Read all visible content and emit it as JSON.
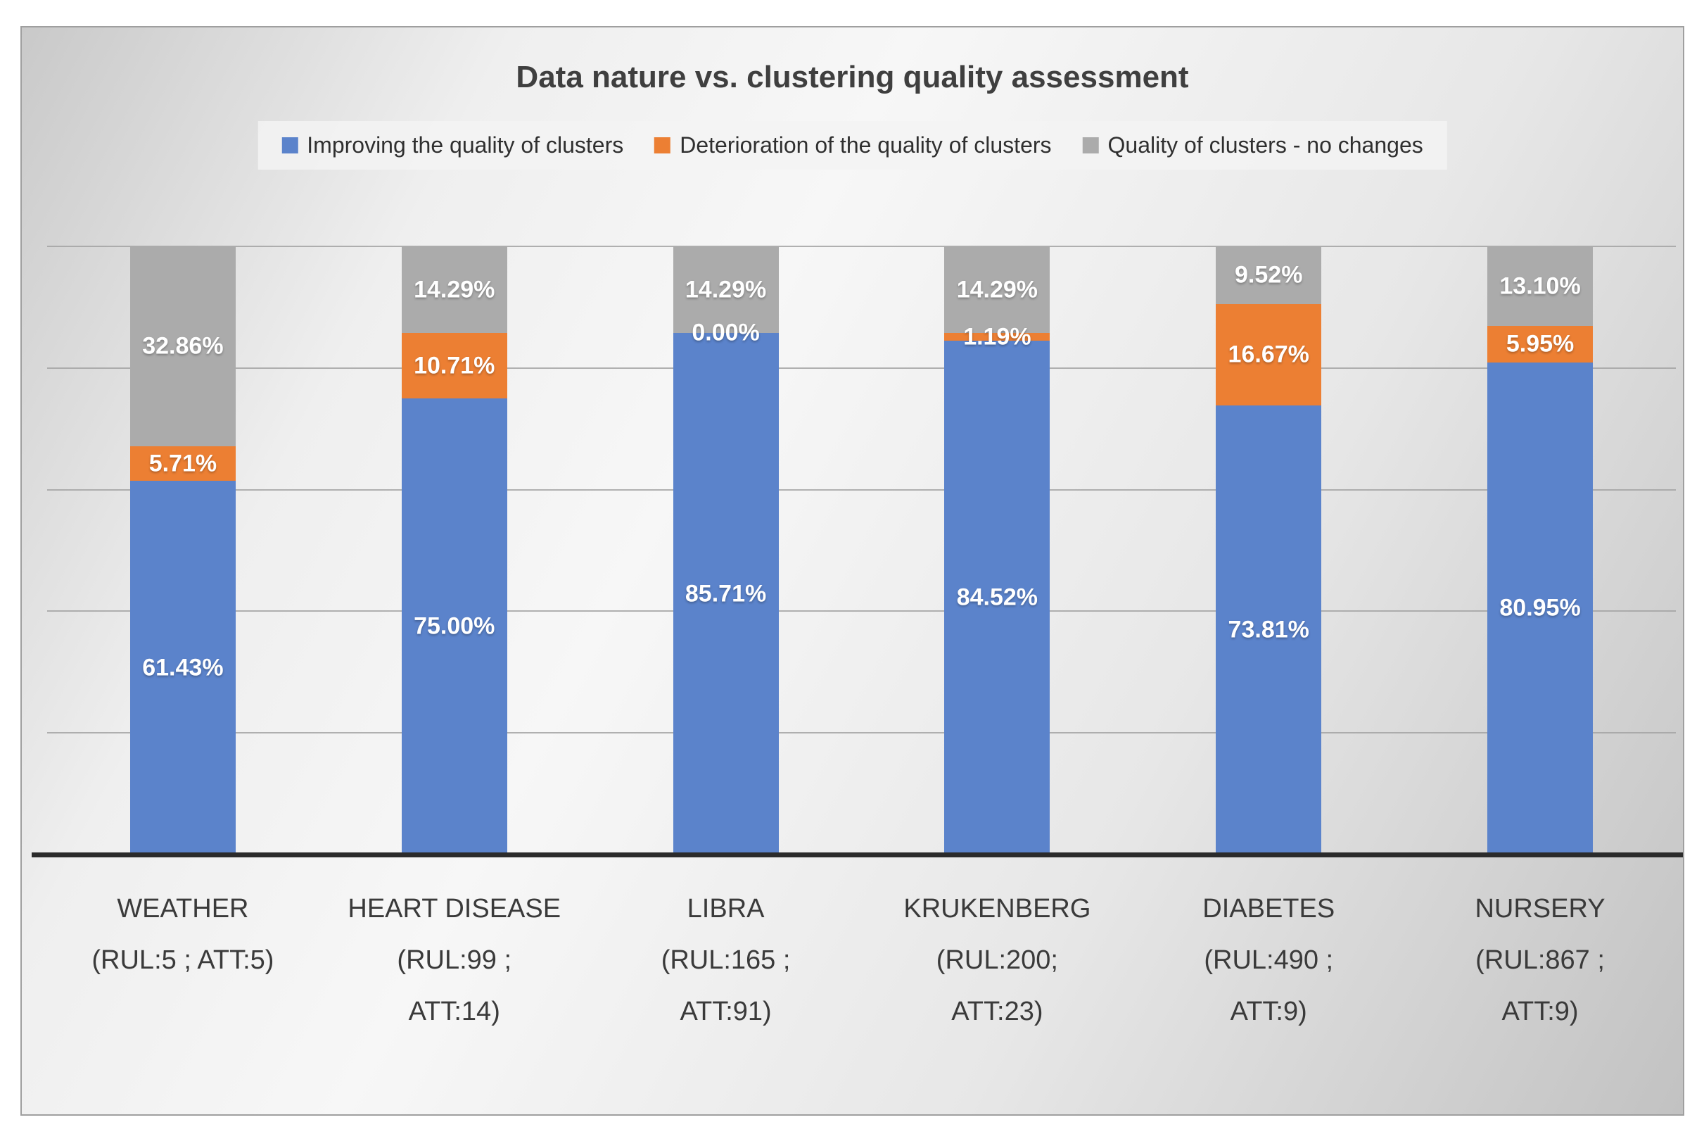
{
  "title": "Data nature vs. clustering quality assessment",
  "legend": {
    "items": [
      {
        "key": "improving",
        "label": "Improving the quality of clusters",
        "color": "#5b83cb"
      },
      {
        "key": "deterioration",
        "label": "Deterioration of the quality of clusters",
        "color": "#ec7f33"
      },
      {
        "key": "no-change",
        "label": "Quality of clusters - no changes",
        "color": "#ababab"
      }
    ],
    "position": "top"
  },
  "chart_data": {
    "type": "bar",
    "stacked": true,
    "title": "Data nature vs. clustering quality assessment",
    "xlabel": "",
    "ylabel": "",
    "ylim": [
      0,
      100
    ],
    "gridlines_percent": [
      20,
      40,
      60,
      80,
      100
    ],
    "grid": "horizontal",
    "legend_position": "top",
    "stack_order_bottom_to_top": [
      "improving",
      "deterioration",
      "no-change"
    ],
    "categories": [
      {
        "name": "WEATHER",
        "lines": [
          "WEATHER",
          "(RUL:5 ; ATT:5)"
        ]
      },
      {
        "name": "HEART DISEASE",
        "lines": [
          "HEART DISEASE",
          "(RUL:99 ;",
          "ATT:14)"
        ]
      },
      {
        "name": "LIBRA",
        "lines": [
          "LIBRA",
          "(RUL:165 ;",
          "ATT:91)"
        ]
      },
      {
        "name": "KRUKENBERG",
        "lines": [
          "KRUKENBERG",
          "(RUL:200;",
          "ATT:23)"
        ]
      },
      {
        "name": "DIABETES",
        "lines": [
          "DIABETES",
          "(RUL:490 ;",
          "ATT:9)"
        ]
      },
      {
        "name": "NURSERY",
        "lines": [
          "NURSERY",
          "(RUL:867 ;",
          "ATT:9)"
        ]
      }
    ],
    "series": [
      {
        "key": "improving",
        "name": "Improving the quality of clusters",
        "color": "#5b83cb",
        "values": [
          61.43,
          75.0,
          85.71,
          84.52,
          73.81,
          80.95
        ],
        "labels": [
          "61.43%",
          "75.00%",
          "85.71%",
          "84.52%",
          "73.81%",
          "80.95%"
        ]
      },
      {
        "key": "deterioration",
        "name": "Deterioration of the quality of clusters",
        "color": "#ec7f33",
        "values": [
          5.71,
          10.71,
          0.0,
          1.19,
          16.67,
          5.95
        ],
        "labels": [
          "5.71%",
          "10.71%",
          "0.00%",
          "1.19%",
          "16.67%",
          "5.95%"
        ]
      },
      {
        "key": "no-change",
        "name": "Quality of clusters - no changes",
        "color": "#ababab",
        "values": [
          32.86,
          14.29,
          14.29,
          14.29,
          9.52,
          13.1
        ],
        "labels": [
          "32.86%",
          "14.29%",
          "14.29%",
          "14.29%",
          "9.52%",
          "13.10%"
        ]
      }
    ]
  },
  "colors": {
    "improving": "#5b83cb",
    "deterioration": "#ec7f33",
    "no_change": "#ababab",
    "axis_line": "#2b2b2b",
    "gridline": "#a3a3a3",
    "title_text": "#3f3f3f",
    "value_label_text": "#ffffff"
  }
}
